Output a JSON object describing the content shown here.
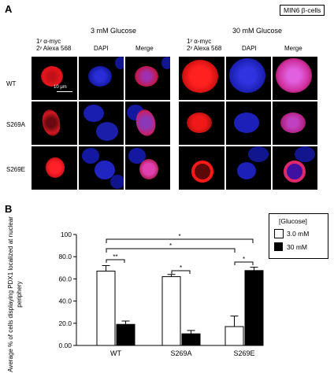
{
  "panel_a": {
    "letter": "A",
    "cell_type_label": "MIN6 β-cells",
    "left_group_title": "3 mM Glucose",
    "right_group_title": "30 mM Glucose",
    "col_antibody_line1": "1ʸ α-myc",
    "col_antibody_line2": "2ʸ Alexa 568",
    "col_dapi": "DAPI",
    "col_merge": "Merge",
    "rows": [
      "WT",
      "S269A",
      "S269E"
    ],
    "scale_bar": "10 μm"
  },
  "panel_b": {
    "letter": "B",
    "legend_title": "[Glucose]",
    "legend_items": [
      "3.0 mM",
      "30 mM"
    ],
    "sig_marks": [
      "**",
      "*",
      "*",
      "*",
      "*"
    ]
  },
  "chart_data": {
    "type": "bar",
    "ylabel": "Average % of cells displaying PDX1 localized at nuclear periphery",
    "ylim": [
      0,
      100
    ],
    "yticks": [
      "0.00",
      "20.0",
      "40.0",
      "60.0",
      "80.0",
      "100"
    ],
    "categories": [
      "WT",
      "S269A",
      "S269E"
    ],
    "series": [
      {
        "name": "3.0 mM",
        "color": "#ffffff",
        "values": [
          67.0,
          62.0,
          17.0
        ],
        "errors": [
          5.0,
          2.0,
          9.5
        ]
      },
      {
        "name": "30 mM",
        "color": "#000000",
        "values": [
          19.0,
          10.5,
          67.5
        ],
        "errors": [
          3.0,
          3.0,
          3.0
        ]
      }
    ]
  }
}
